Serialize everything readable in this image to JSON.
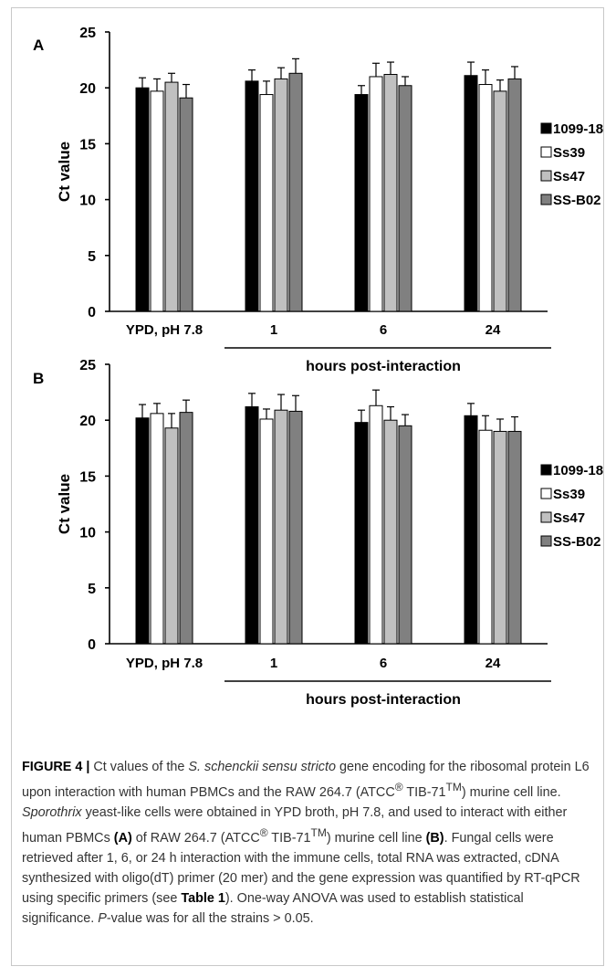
{
  "chart_data": [
    {
      "type": "bar",
      "panel_label": "A",
      "categories": [
        "YPD, pH 7.8",
        "1",
        "6",
        "24"
      ],
      "ylabel": "Ct value",
      "xlabel": "hours post-interaction",
      "ylim": [
        0,
        25
      ],
      "yticks": [
        0,
        5,
        10,
        15,
        20,
        25
      ],
      "legend_position": "right",
      "series": [
        {
          "name": "1099-18",
          "color": "#000000",
          "values": [
            20.0,
            20.6,
            19.4,
            21.1
          ],
          "errors": [
            0.9,
            1.0,
            0.8,
            1.2
          ]
        },
        {
          "name": "Ss39",
          "color": "#ffffff",
          "values": [
            19.7,
            19.4,
            21.0,
            20.3
          ],
          "errors": [
            1.1,
            1.2,
            1.2,
            1.3
          ]
        },
        {
          "name": "Ss47",
          "color": "#c0c0c0",
          "values": [
            20.5,
            20.8,
            21.2,
            19.7
          ],
          "errors": [
            0.8,
            1.0,
            1.1,
            1.0
          ]
        },
        {
          "name": "SS-B02",
          "color": "#808080",
          "values": [
            19.1,
            21.3,
            20.2,
            20.8
          ],
          "errors": [
            1.2,
            1.3,
            0.8,
            1.1
          ]
        }
      ]
    },
    {
      "type": "bar",
      "panel_label": "B",
      "categories": [
        "YPD, pH 7.8",
        "1",
        "6",
        "24"
      ],
      "ylabel": "Ct value",
      "xlabel": "hours post-interaction",
      "ylim": [
        0,
        25
      ],
      "yticks": [
        0,
        5,
        10,
        15,
        20,
        25
      ],
      "legend_position": "right",
      "series": [
        {
          "name": "1099-18",
          "color": "#000000",
          "values": [
            20.2,
            21.2,
            19.8,
            20.4
          ],
          "errors": [
            1.2,
            1.2,
            1.1,
            1.1
          ]
        },
        {
          "name": "Ss39",
          "color": "#ffffff",
          "values": [
            20.6,
            20.1,
            21.3,
            19.1
          ],
          "errors": [
            0.9,
            0.9,
            1.4,
            1.3
          ]
        },
        {
          "name": "Ss47",
          "color": "#c0c0c0",
          "values": [
            19.3,
            20.9,
            20.0,
            19.0
          ],
          "errors": [
            1.3,
            1.4,
            1.2,
            1.1
          ]
        },
        {
          "name": "SS-B02",
          "color": "#808080",
          "values": [
            20.7,
            20.8,
            19.5,
            19.0
          ],
          "errors": [
            1.1,
            1.4,
            1.0,
            1.3
          ]
        }
      ]
    }
  ],
  "caption": {
    "fig_label": "FIGURE 4 |",
    "t1": " Ct values of the ",
    "t2": "S. schenckii sensu stricto",
    "t3": " gene encoding for the ribosomal protein L6 upon interaction with human PBMCs and the RAW 264.7 (ATCC",
    "reg": "®",
    "t4": " TIB-71",
    "tm": "TM",
    "t5": ") murine cell line. ",
    "t6": "Sporothrix",
    "t7": " yeast-like cells were obtained in YPD broth, pH 7.8, and used to interact with either human PBMCs ",
    "t8": "(A)",
    "t9": " of RAW 264.7 (ATCC",
    "t10": " TIB-71",
    "t11": ") murine cell line ",
    "t12": "(B)",
    "t13": ". Fungal cells were retrieved after 1, 6, or 24 h interaction with the immune cells, total RNA was extracted, cDNA synthesized with oligo(dT) primer (20 mer) and the gene expression was quantified by RT-qPCR using specific primers (see ",
    "t14": "Table 1",
    "t15": "). One-way ANOVA was used to establish statistical significance. ",
    "t16": "P",
    "t17": "-value was for all the strains > 0.05."
  }
}
